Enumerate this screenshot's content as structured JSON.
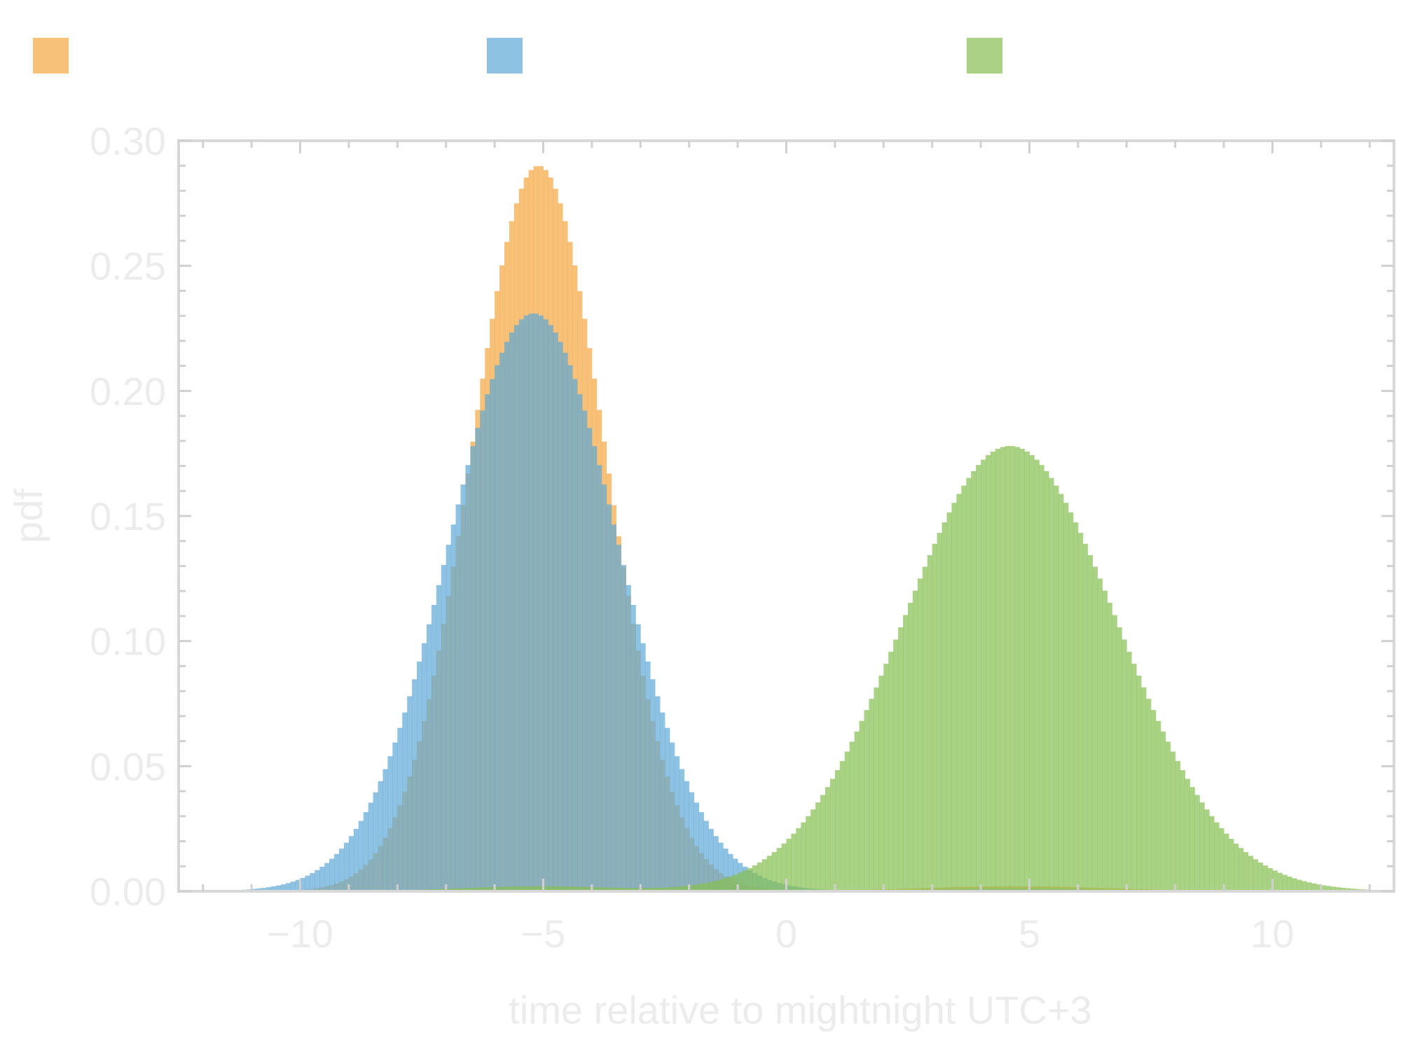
{
  "chart_data": {
    "type": "histogram",
    "title": "",
    "xlabel": "time relative to mightnight UTC+3",
    "ylabel": "pdf",
    "xlim": [
      -12.5,
      12.5
    ],
    "ylim": [
      0,
      0.3
    ],
    "x_ticks": [
      -10,
      -5,
      0,
      5,
      10
    ],
    "x_tick_labels": [
      "−10",
      "−5",
      "0",
      "5",
      "10"
    ],
    "y_ticks": [
      0,
      0.05,
      0.1,
      0.15,
      0.2,
      0.25,
      0.3
    ],
    "y_tick_labels": [
      "0.00",
      "0.05",
      "0.10",
      "0.15",
      "0.20",
      "0.25",
      "0.30"
    ],
    "grid": false,
    "legend": {
      "placement": "top",
      "entries": [
        "",
        "",
        ""
      ]
    },
    "bin_width": 0.1,
    "series": [
      {
        "color": "#f5a742",
        "opacity": 0.7,
        "components": [
          {
            "mean": -5.1,
            "sd": 1.38,
            "peak": 0.29
          },
          {
            "mean": 4.7,
            "sd": 2.0,
            "peak": 0.002
          }
        ]
      },
      {
        "color": "#5ea8d6",
        "opacity": 0.7,
        "components": [
          {
            "mean": -5.2,
            "sd": 1.73,
            "peak": 0.231
          },
          {
            "mean": 4.7,
            "sd": 2.0,
            "peak": 0.001
          }
        ]
      },
      {
        "color": "#86bf50",
        "opacity": 0.7,
        "components": [
          {
            "mean": 4.6,
            "sd": 2.2,
            "peak": 0.178
          },
          {
            "mean": -5.1,
            "sd": 1.6,
            "peak": 0.002
          }
        ]
      }
    ]
  }
}
